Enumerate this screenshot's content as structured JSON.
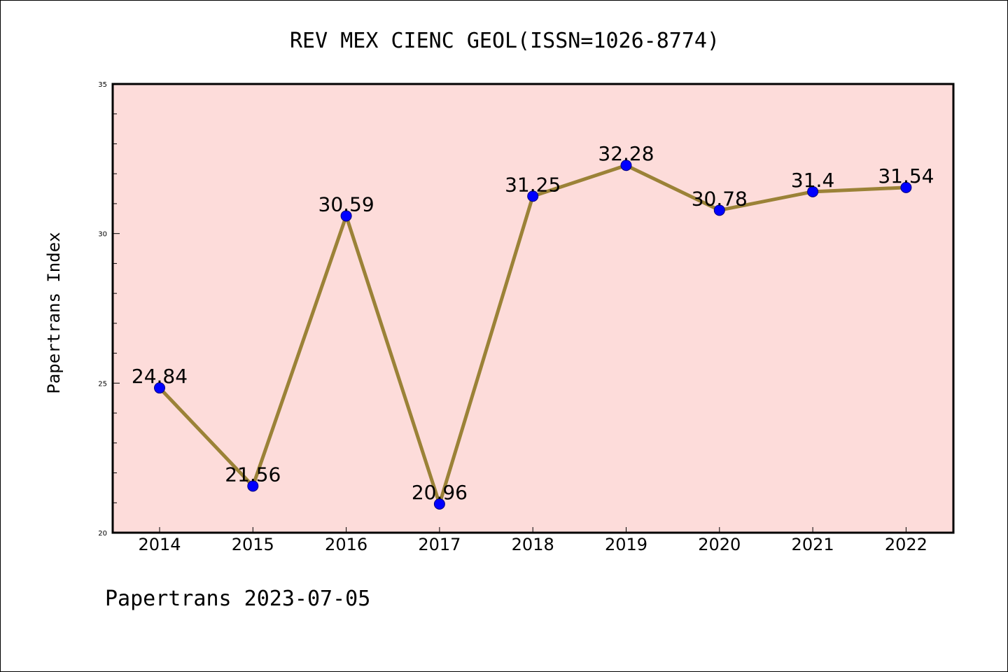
{
  "chart_data": {
    "type": "line",
    "title": "REV MEX CIENC GEOL(ISSN=1026-8774)",
    "xlabel": "",
    "ylabel": "Papertrans Index",
    "categories": [
      "2014",
      "2015",
      "2016",
      "2017",
      "2018",
      "2019",
      "2020",
      "2021",
      "2022"
    ],
    "series": [
      {
        "values": [
          24.84,
          21.56,
          30.59,
          20.96,
          31.25,
          32.28,
          30.78,
          31.4,
          31.54
        ]
      }
    ],
    "data_labels": [
      "24.84",
      "21.56",
      "30.59",
      "20.96",
      "31.25",
      "32.28",
      "30.78",
      "31.4",
      "31.54"
    ],
    "ylim": [
      20,
      35
    ],
    "y_ticks": [
      "20",
      "25",
      "30",
      "35"
    ],
    "y_minor_step": 1,
    "grid": false,
    "colors": {
      "plot_background": "#fddcda",
      "line": "#9b8237",
      "marker": "#0000ff"
    }
  },
  "footer": {
    "text": "Papertrans 2023-07-05"
  }
}
